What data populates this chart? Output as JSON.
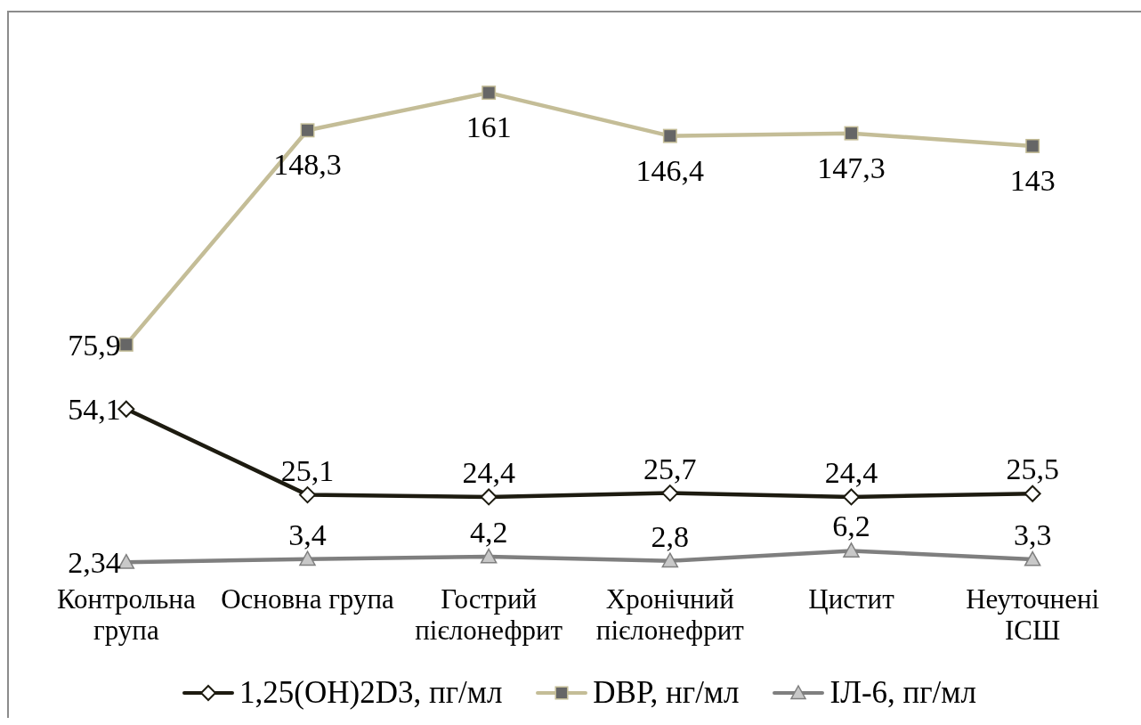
{
  "chart_data": {
    "type": "line",
    "categories": [
      "Контрольна група",
      "Основна група",
      "Гострий пієлонефрит",
      "Хронічний пієлонефрит",
      "Цистит",
      "Неуточнені ІСШ"
    ],
    "series": [
      {
        "name": "1,25(OH)2D3, пг/мл",
        "color": "#1d1b10",
        "marker": "diamond",
        "values": [
          54.1,
          25.1,
          24.4,
          25.7,
          24.4,
          25.5
        ],
        "value_labels": [
          "54,1",
          "25,1",
          "24,4",
          "25,7",
          "24,4",
          "25,5"
        ]
      },
      {
        "name": "DBP, нг/мл",
        "color": "#c4bd97",
        "marker": "square",
        "values": [
          75.9,
          148.3,
          161,
          146.4,
          147.3,
          143
        ],
        "value_labels": [
          "75,9",
          "148,3",
          "161",
          "146,4",
          "147,3",
          "143"
        ]
      },
      {
        "name": "ІЛ-6, пг/мл",
        "color": "#7f7f7f",
        "marker": "triangle",
        "values": [
          2.34,
          3.4,
          4.2,
          2.8,
          6.2,
          3.3
        ],
        "value_labels": [
          "2,34",
          "3,4",
          "4,2",
          "2,8",
          "6,2",
          "3,3"
        ]
      }
    ],
    "tick_labels": "x",
    "legend": "bottom",
    "line_style": "solid"
  }
}
